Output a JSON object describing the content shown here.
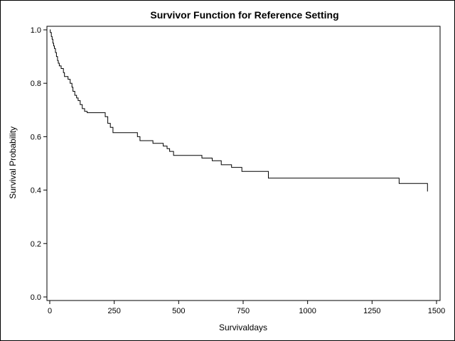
{
  "chart_data": {
    "type": "line",
    "step": true,
    "title": "Survivor Function for Reference Setting",
    "xlabel": "Survivaldays",
    "ylabel": "Survival Probability",
    "xlim": [
      0,
      1500
    ],
    "ylim": [
      0,
      1
    ],
    "xticks": [
      0,
      250,
      500,
      750,
      1000,
      1250,
      1500
    ],
    "xtick_labels": [
      "0",
      "250",
      "500",
      "750",
      "1000",
      "1250",
      "1500"
    ],
    "yticks": [
      0.0,
      0.2,
      0.4,
      0.6,
      0.8,
      1.0
    ],
    "ytick_labels": [
      "0.0",
      "0.2",
      "0.4",
      "0.6",
      "0.8",
      "1.0"
    ],
    "grid": false,
    "colors": {
      "line": "#000000",
      "axis": "#000000",
      "background": "#ffffff"
    },
    "series": [
      {
        "name": "Survivor Function",
        "x": [
          0,
          2,
          6,
          9,
          12,
          15,
          18,
          22,
          26,
          30,
          33,
          37,
          44,
          53,
          57,
          63,
          71,
          79,
          86,
          90,
          97,
          104,
          110,
          118,
          126,
          135,
          145,
          160,
          200,
          215,
          225,
          235,
          245,
          340,
          350,
          400,
          440,
          455,
          465,
          480,
          590,
          630,
          665,
          705,
          745,
          848,
          1355,
          1465
        ],
        "y": [
          1.0,
          0.99,
          0.975,
          0.965,
          0.95,
          0.94,
          0.93,
          0.915,
          0.9,
          0.885,
          0.875,
          0.865,
          0.855,
          0.84,
          0.825,
          0.825,
          0.815,
          0.8,
          0.785,
          0.77,
          0.755,
          0.745,
          0.735,
          0.72,
          0.705,
          0.695,
          0.69,
          0.69,
          0.69,
          0.675,
          0.65,
          0.635,
          0.615,
          0.6,
          0.585,
          0.575,
          0.565,
          0.555,
          0.545,
          0.53,
          0.52,
          0.51,
          0.495,
          0.485,
          0.47,
          0.445,
          0.425,
          0.395
        ]
      }
    ]
  }
}
